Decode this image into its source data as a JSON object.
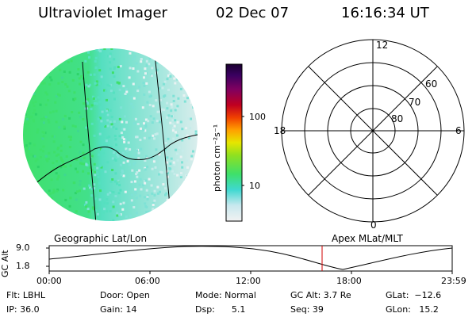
{
  "header": {
    "instrument": "Ultraviolet Imager",
    "date": "02 Dec 07",
    "time": "16:16:34 UT"
  },
  "colorbar": {
    "unit_label": "photon cm⁻²s⁻¹",
    "tick_100": "100",
    "tick_10": "10"
  },
  "polar_plot": {
    "mlt_labels": {
      "top": "12",
      "right": "6",
      "bottom": "0",
      "left": "18"
    },
    "lat_labels": [
      "60",
      "70",
      "80"
    ]
  },
  "altitude_panel": {
    "left_title": "Geographic Lat/Lon",
    "right_title": "Apex MLat/MLT",
    "ylabel": "GC Alt",
    "y_ticks": [
      "9.0",
      "1.8"
    ],
    "x_ticks": [
      "00:00",
      "06:00",
      "12:00",
      "18:00",
      "23:59"
    ]
  },
  "status": {
    "flt": "Flt: LBHL",
    "ip": "IP: 36.0",
    "door": "Door: Open",
    "gain": "Gain: 14",
    "mode": "Mode: Normal",
    "dsp": "Dsp:      5.1",
    "gcalt": "GC Alt: 3.7 Re",
    "seq": "Seq: 39",
    "glat": "GLat:  −12.6",
    "glon": "GLon:   15.2"
  },
  "colors": {
    "marker_red": "#d00000",
    "image_green": "#3ee06a",
    "image_cyan": "#4ee0c8",
    "image_light": "#bfe8e4"
  }
}
